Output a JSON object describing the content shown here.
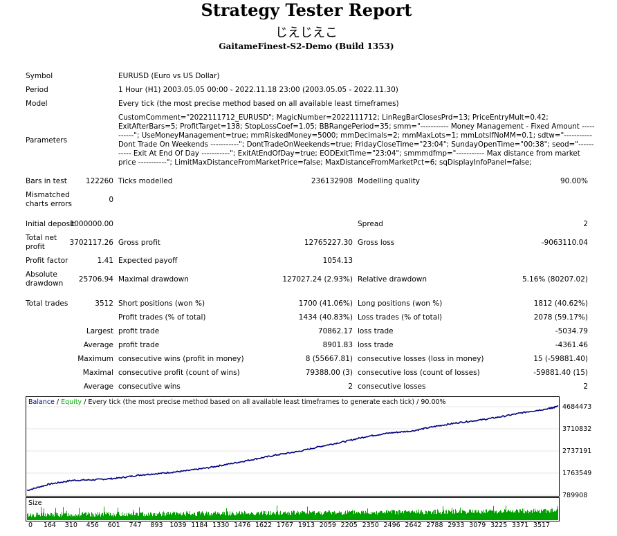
{
  "header": {
    "title": "Strategy Tester Report",
    "subtitle": "じえじえこ",
    "server": "GaitameFinest-S2-Demo (Build 1353)"
  },
  "info": {
    "symbol_label": "Symbol",
    "symbol": "EURUSD (Euro vs US Dollar)",
    "period_label": "Period",
    "period": "1 Hour (H1) 2003.05.05 00:00 - 2022.11.18 23:00 (2003.05.05 - 2022.11.30)",
    "model_label": "Model",
    "model": "Every tick (the most precise method based on all available least timeframes)",
    "parameters_label": "Parameters",
    "parameters": "CustomComment=\"2022111712_EURUSD\"; MagicNumber=2022111712; LinRegBarClosesPrd=13; PriceEntryMult=0.42; ExitAfterBars=5; ProfitTarget=138; StopLossCoef=1.05; BBRangePeriod=35; smm=\"----------- Money Management - Fixed Amount -----------\"; UseMoneyManagement=true; mmRiskedMoney=5000; mmDecimals=2; mmMaxLots=1; mmLotsIfNoMM=0.1; sdtw=\"----------- Dont Trade On Weekends -----------\"; DontTradeOnWeekends=true; FridayCloseTime=\"23:04\"; SundayOpenTime=\"00:38\"; seod=\"----------- Exit At End Of Day -----------\"; ExitAtEndOfDay=true; EODExitTime=\"23:04\"; smmmdfmp=\"----------- Max distance from market price -----------\"; LimitMaxDistanceFromMarketPrice=false; MaxDistanceFromMarketPct=6; sqDisplayInfoPanel=false;"
  },
  "stats": {
    "bars_label": "Bars in test",
    "bars": "122260",
    "ticks_label": "Ticks modelled",
    "ticks": "236132908",
    "quality_label": "Modelling quality",
    "quality": "90.00%",
    "mismatched_label1": "Mismatched",
    "mismatched_label2": "charts errors",
    "mismatched": "0",
    "deposit_label": "Initial deposit",
    "deposit": "1000000.00",
    "spread_label": "Spread",
    "spread": "2",
    "netprofit_label1": "Total net",
    "netprofit_label2": "profit",
    "netprofit": "3702117.26",
    "grossprofit_label": "Gross profit",
    "grossprofit": "12765227.30",
    "grossloss_label": "Gross loss",
    "grossloss": "-9063110.04",
    "pf_label": "Profit factor",
    "pf": "1.41",
    "payoff_label": "Expected payoff",
    "payoff": "1054.13",
    "absdd_label1": "Absolute",
    "absdd_label2": "drawdown",
    "absdd": "25706.94",
    "maxdd_label": "Maximal drawdown",
    "maxdd": "127027.24 (2.93%)",
    "reldd_label": "Relative drawdown",
    "reldd": "5.16% (80207.02)",
    "trades_label": "Total trades",
    "trades": "3512",
    "short_label": "Short positions (won %)",
    "short": "1700 (41.06%)",
    "long_label": "Long positions (won %)",
    "long": "1812 (40.62%)",
    "ptrades_label": "Profit trades (% of total)",
    "ptrades": "1434 (40.83%)",
    "ltrades_label": "Loss trades (% of total)",
    "ltrades": "2078 (59.17%)",
    "largest_label": "Largest",
    "lp_label": "profit trade",
    "lp": "70862.17",
    "ll_label": "loss trade",
    "ll": "-5034.79",
    "average_label": "Average",
    "ap_label": "profit trade",
    "ap": "8901.83",
    "al_label": "loss trade",
    "al": "-4361.46",
    "maximum_label": "Maximum",
    "mcw_label": "consecutive wins (profit in money)",
    "mcw": "8 (55667.81)",
    "mcl_label": "consecutive losses (loss in money)",
    "mcl": "15 (-59881.40)",
    "maximal_label": "Maximal",
    "mcp_label": "consecutive profit (count of wins)",
    "mcp": "79388.00 (3)",
    "mcloss_label": "consecutive loss (count of losses)",
    "mcloss": "-59881.40 (15)",
    "average2_label": "Average",
    "acw_label": "consecutive wins",
    "acw": "2",
    "acl_label": "consecutive losses",
    "acl": "2"
  },
  "chart_data": {
    "type": "line",
    "legend": {
      "balance": "Balance",
      "sep1": " / ",
      "equity": "Equity",
      "rest": " / Every tick (the most precise method based on all available least timeframes to generate each tick) / 90.00%"
    },
    "colors": {
      "balance": "#000080",
      "equity": "#00b000",
      "size": "#00a000"
    },
    "y_ticks": [
      "4684473",
      "3710832",
      "2737191",
      "1763549",
      "789908"
    ],
    "ylim": [
      789908,
      4684473
    ],
    "x_ticks": [
      "0",
      "164",
      "310",
      "456",
      "601",
      "747",
      "893",
      "1039",
      "1184",
      "1330",
      "1476",
      "1622",
      "1767",
      "1913",
      "2059",
      "2205",
      "2350",
      "2496",
      "2642",
      "2788",
      "2933",
      "3079",
      "3225",
      "3371",
      "3517"
    ],
    "xlim": [
      0,
      3512
    ],
    "balance": {
      "x": [
        0,
        150,
        300,
        450,
        600,
        750,
        900,
        1050,
        1200,
        1350,
        1500,
        1650,
        1800,
        1950,
        2100,
        2250,
        2400,
        2550,
        2700,
        2850,
        3000,
        3150,
        3300,
        3450,
        3512
      ],
      "y": [
        1000000,
        1280000,
        1440000,
        1470000,
        1540000,
        1680000,
        1760000,
        1860000,
        2000000,
        2180000,
        2370000,
        2560000,
        2720000,
        2950000,
        3150000,
        3380000,
        3530000,
        3620000,
        3820000,
        3980000,
        4100000,
        4260000,
        4450000,
        4600000,
        4702117
      ]
    },
    "size_label": "Size"
  }
}
